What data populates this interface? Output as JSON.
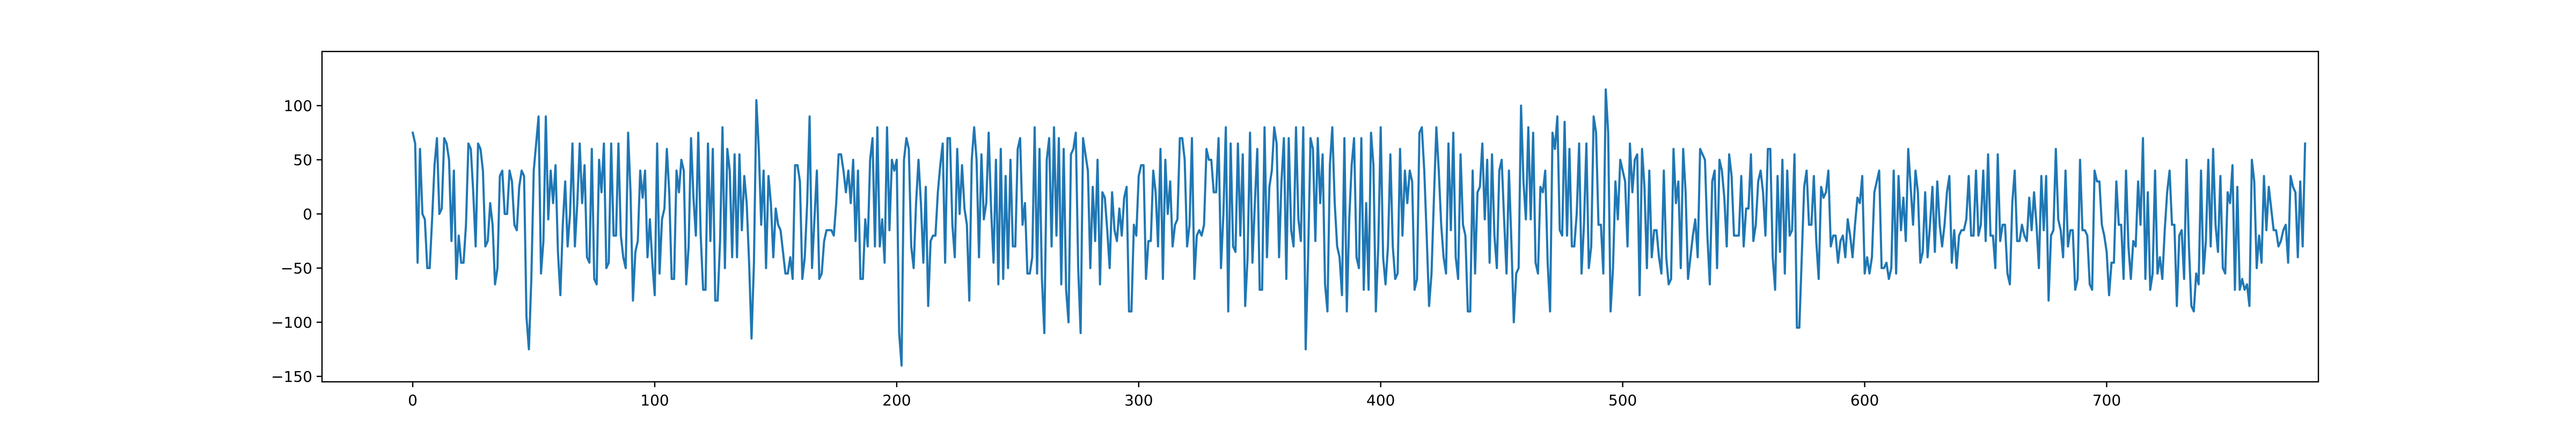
{
  "chart_data": {
    "type": "line",
    "title": "",
    "xlabel": "",
    "ylabel": "",
    "xlim": [
      -37.5,
      787.5
    ],
    "ylim": [
      -155,
      150
    ],
    "xticks": [
      0,
      100,
      200,
      300,
      400,
      500,
      600,
      700
    ],
    "yticks": [
      -150,
      -100,
      -50,
      0,
      50,
      100
    ],
    "grid": false,
    "legend": "none",
    "series": [
      {
        "color": "#1f77b4",
        "x_start": 0,
        "x_step": 1,
        "values": [
          75,
          65,
          -45,
          60,
          0,
          -5,
          -50,
          -50,
          -5,
          45,
          70,
          0,
          5,
          70,
          65,
          50,
          -25,
          40,
          -60,
          -20,
          -45,
          -45,
          -10,
          65,
          60,
          20,
          -30,
          65,
          60,
          40,
          -30,
          -25,
          10,
          -10,
          -65,
          -50,
          35,
          40,
          0,
          0,
          40,
          30,
          -10,
          -15,
          25,
          40,
          35,
          -95,
          -125,
          -60,
          40,
          65,
          90,
          -55,
          -25,
          90,
          -5,
          40,
          10,
          45,
          -35,
          -75,
          -10,
          30,
          -30,
          0,
          65,
          -30,
          10,
          65,
          10,
          45,
          -40,
          -45,
          60,
          -60,
          -65,
          50,
          20,
          65,
          -50,
          -45,
          65,
          -20,
          -20,
          65,
          -20,
          -40,
          -50,
          75,
          20,
          -80,
          -35,
          -25,
          40,
          15,
          40,
          -40,
          -5,
          -45,
          -75,
          65,
          -55,
          -5,
          5,
          60,
          20,
          -60,
          -60,
          40,
          20,
          50,
          40,
          -65,
          -30,
          70,
          15,
          -20,
          75,
          -20,
          -70,
          -70,
          65,
          -25,
          60,
          -80,
          -80,
          -25,
          80,
          -50,
          60,
          40,
          -40,
          55,
          -40,
          55,
          -15,
          35,
          10,
          -45,
          -115,
          -45,
          105,
          60,
          -10,
          40,
          -50,
          35,
          10,
          -40,
          5,
          -10,
          -15,
          -35,
          -55,
          -55,
          -40,
          -60,
          45,
          45,
          30,
          -60,
          -40,
          10,
          90,
          -50,
          -5,
          40,
          -60,
          -55,
          -25,
          -15,
          -15,
          -15,
          -20,
          10,
          55,
          55,
          40,
          20,
          40,
          10,
          50,
          -25,
          40,
          -60,
          -60,
          -5,
          -30,
          50,
          70,
          -30,
          80,
          -30,
          -5,
          -45,
          80,
          -15,
          50,
          40,
          50,
          -110,
          -140,
          50,
          70,
          60,
          -30,
          -50,
          10,
          50,
          10,
          -45,
          25,
          -85,
          -25,
          -20,
          -20,
          20,
          45,
          65,
          -45,
          70,
          70,
          -10,
          -40,
          60,
          0,
          45,
          5,
          -10,
          -80,
          50,
          80,
          50,
          -40,
          55,
          -5,
          10,
          75,
          5,
          -45,
          50,
          -65,
          60,
          -60,
          35,
          -50,
          50,
          -30,
          -30,
          60,
          70,
          -10,
          10,
          -55,
          -55,
          -40,
          80,
          -55,
          60,
          -60,
          -110,
          50,
          70,
          -30,
          80,
          -20,
          70,
          -65,
          60,
          -70,
          -100,
          55,
          60,
          75,
          -50,
          -110,
          70,
          55,
          40,
          -50,
          25,
          -25,
          50,
          -65,
          20,
          15,
          -15,
          -50,
          20,
          -15,
          -25,
          5,
          -20,
          15,
          25,
          -90,
          -90,
          -10,
          -20,
          35,
          45,
          45,
          -60,
          -25,
          -25,
          40,
          20,
          -30,
          60,
          -60,
          50,
          0,
          30,
          -30,
          -10,
          -5,
          70,
          70,
          50,
          -30,
          -10,
          70,
          -60,
          -20,
          -15,
          -20,
          -10,
          60,
          50,
          50,
          20,
          20,
          70,
          -50,
          0,
          80,
          -90,
          65,
          -30,
          -35,
          65,
          -20,
          55,
          -85,
          -40,
          75,
          -45,
          10,
          60,
          -70,
          -70,
          80,
          -40,
          25,
          40,
          80,
          65,
          -40,
          30,
          70,
          -60,
          70,
          -15,
          -30,
          80,
          -5,
          -25,
          80,
          -125,
          -40,
          70,
          60,
          -25,
          70,
          10,
          55,
          -65,
          -90,
          45,
          80,
          10,
          -30,
          -40,
          -75,
          70,
          -90,
          -5,
          45,
          70,
          -40,
          -50,
          70,
          -70,
          10,
          -70,
          75,
          45,
          -90,
          -30,
          80,
          -40,
          -65,
          -30,
          55,
          -30,
          -60,
          -55,
          60,
          -20,
          40,
          10,
          40,
          30,
          -70,
          -60,
          75,
          80,
          40,
          -20,
          -85,
          -55,
          15,
          80,
          40,
          -10,
          -40,
          -55,
          65,
          -15,
          75,
          -40,
          -60,
          55,
          -10,
          -20,
          -90,
          -90,
          40,
          -55,
          20,
          25,
          65,
          -5,
          50,
          -45,
          55,
          -20,
          -50,
          40,
          50,
          -5,
          -55,
          40,
          -25,
          -100,
          -55,
          -50,
          100,
          30,
          -5,
          80,
          -5,
          75,
          -45,
          -55,
          25,
          20,
          40,
          -45,
          -90,
          75,
          60,
          90,
          -15,
          -20,
          85,
          -20,
          60,
          -30,
          -30,
          0,
          65,
          -55,
          -10,
          65,
          -50,
          -30,
          90,
          75,
          -10,
          -10,
          -55,
          115,
          75,
          -90,
          -50,
          30,
          -5,
          50,
          40,
          30,
          -30,
          65,
          20,
          50,
          55,
          -75,
          60,
          25,
          -50,
          40,
          -40,
          -15,
          -15,
          -40,
          -55,
          40,
          -40,
          -65,
          -60,
          60,
          10,
          30,
          -50,
          60,
          20,
          -60,
          -40,
          -20,
          -5,
          -40,
          60,
          55,
          50,
          -20,
          -65,
          30,
          40,
          -50,
          50,
          40,
          15,
          -30,
          55,
          35,
          -20,
          -20,
          -20,
          35,
          -30,
          5,
          5,
          55,
          -25,
          -10,
          30,
          40,
          20,
          -20,
          60,
          60,
          -40,
          -70,
          35,
          -35,
          50,
          -55,
          40,
          -20,
          -15,
          55,
          -105,
          -105,
          -40,
          25,
          40,
          -10,
          -10,
          35,
          -25,
          -60,
          25,
          15,
          20,
          40,
          -30,
          -20,
          -20,
          -45,
          -25,
          -20,
          -40,
          -5,
          -20,
          -40,
          -10,
          15,
          10,
          35,
          -55,
          -40,
          -55,
          -40,
          20,
          30,
          40,
          -50,
          -50,
          -45,
          -60,
          -50,
          40,
          -55,
          35,
          -15,
          15,
          -25,
          60,
          25,
          -10,
          40,
          20,
          -45,
          -35,
          20,
          -40,
          -10,
          25,
          -35,
          30,
          -10,
          -30,
          -10,
          20,
          35,
          -45,
          -15,
          -50,
          -20,
          -15,
          -15,
          -5,
          35,
          -20,
          -20,
          40,
          -20,
          -10,
          40,
          -25,
          55,
          -20,
          -20,
          -50,
          55,
          -25,
          -10,
          -10,
          -55,
          -65,
          10,
          40,
          -25,
          -25,
          -10,
          -20,
          -25,
          15,
          -15,
          20,
          -10,
          -50,
          35,
          -15,
          35,
          -80,
          -20,
          -15,
          60,
          -5,
          -15,
          -40,
          40,
          -30,
          -15,
          -15,
          -70,
          -60,
          50,
          -15,
          -15,
          -20,
          -65,
          -70,
          40,
          30,
          30,
          -10,
          -20,
          -35,
          -75,
          -45,
          -45,
          30,
          -10,
          -10,
          -60,
          40,
          -30,
          -60,
          -25,
          -30,
          30,
          -10,
          70,
          -60,
          20,
          -70,
          -55,
          40,
          -55,
          -40,
          -60,
          -15,
          20,
          40,
          -10,
          -10,
          -85,
          -20,
          -15,
          -60,
          50,
          -30,
          -85,
          -90,
          -55,
          -65,
          40,
          -55,
          -25,
          50,
          -30,
          60,
          -10,
          -35,
          35,
          -50,
          -55,
          20,
          10,
          45,
          -70,
          25,
          -70,
          -60,
          -70,
          -65,
          -85,
          50,
          30,
          -50,
          -20,
          -45,
          35,
          -15,
          25,
          5,
          -15,
          -15,
          -30,
          -25,
          -15,
          -10,
          -45,
          35,
          25,
          20,
          -40,
          30,
          -30,
          65
        ]
      }
    ]
  }
}
